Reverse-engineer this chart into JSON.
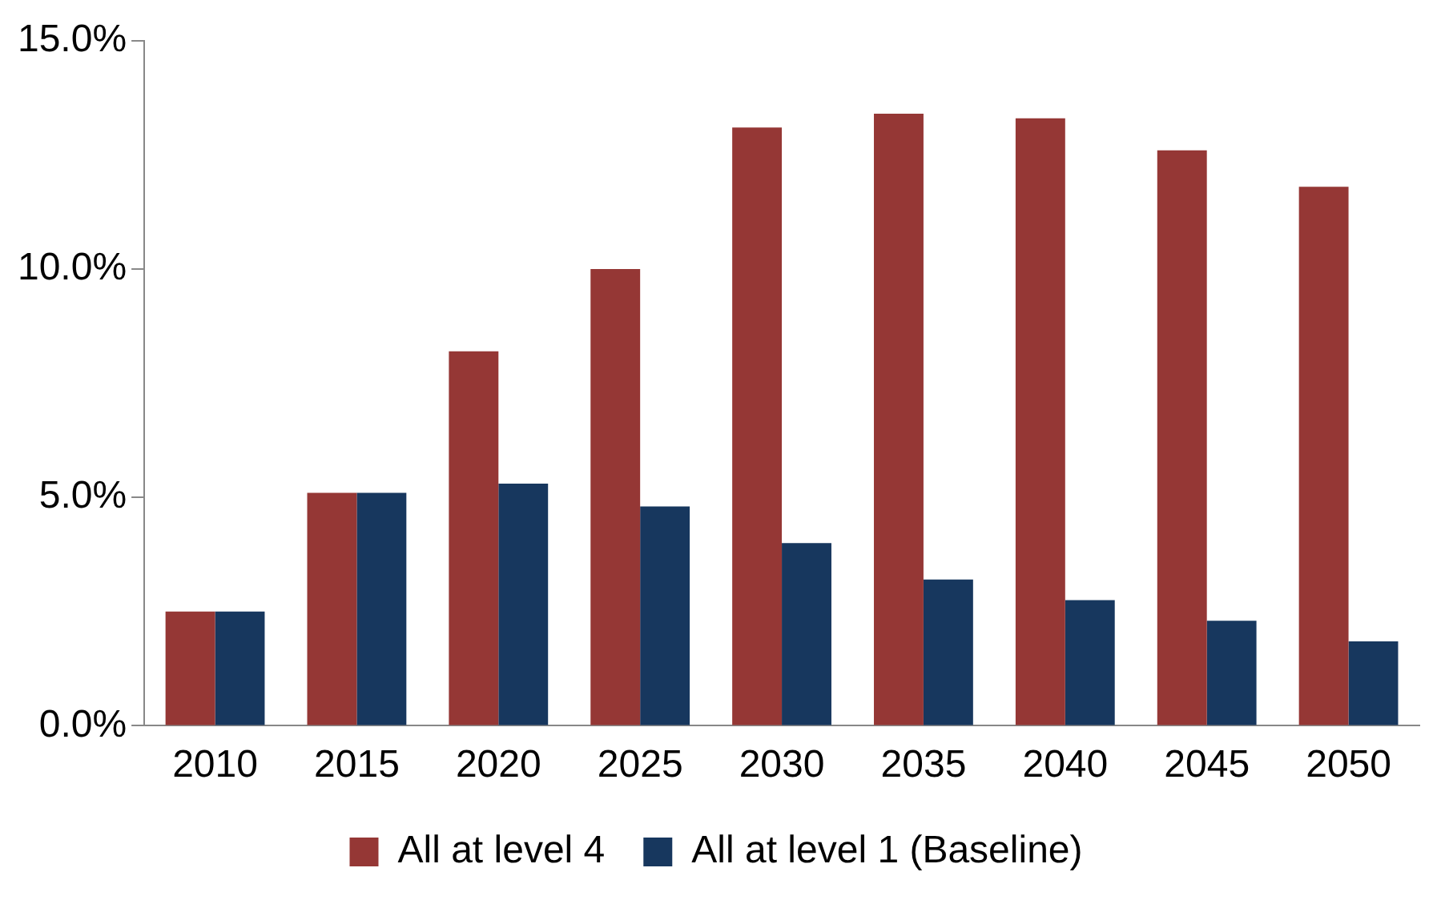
{
  "chart_data": {
    "type": "bar",
    "categories": [
      "2010",
      "2015",
      "2020",
      "2025",
      "2030",
      "2035",
      "2040",
      "2045",
      "2050"
    ],
    "series": [
      {
        "name": "All at level 4",
        "color": "#953735",
        "values": [
          2.5,
          5.1,
          8.2,
          10.0,
          13.1,
          13.4,
          13.3,
          12.6,
          11.8
        ]
      },
      {
        "name": "All at level 1 (Baseline)",
        "color": "#17375e",
        "values": [
          2.5,
          5.1,
          5.3,
          4.8,
          4.0,
          3.2,
          2.75,
          2.3,
          1.85
        ]
      }
    ],
    "ylim": [
      0,
      15
    ],
    "yticks": [
      {
        "value": 0,
        "label": "0.0%"
      },
      {
        "value": 5,
        "label": "5.0%"
      },
      {
        "value": 10,
        "label": "10.0%"
      },
      {
        "value": 15,
        "label": "15.0%"
      }
    ],
    "grid": false,
    "legend": "bottom"
  }
}
